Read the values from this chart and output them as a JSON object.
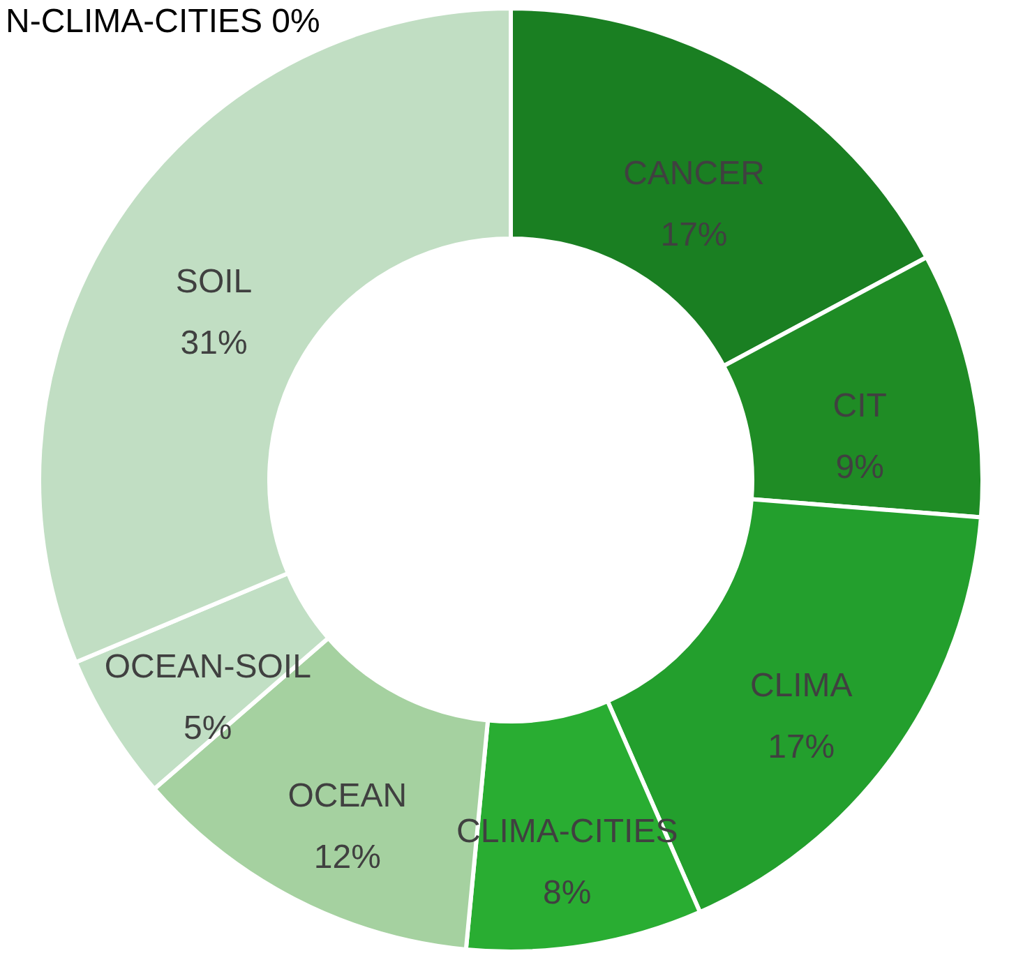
{
  "chart_data": {
    "type": "donut",
    "categories": [
      "CANCER",
      "CIT",
      "CLIMA",
      "CLIMA-CITIES",
      "OCEAN",
      "OCEAN-SOIL",
      "SOIL"
    ],
    "values": [
      17,
      9,
      17,
      8,
      12,
      5,
      31
    ],
    "value_labels": [
      "17%",
      "9%",
      "17%",
      "8%",
      "12%",
      "5%",
      "31%"
    ],
    "colors": [
      "#1a7f22",
      "#1f8c25",
      "#239f2d",
      "#29ad32",
      "#a5d1a0",
      "#c1dfc4",
      "#c1dec3"
    ],
    "annotations": [
      "N-CLIMA-CITIES 0%"
    ]
  }
}
